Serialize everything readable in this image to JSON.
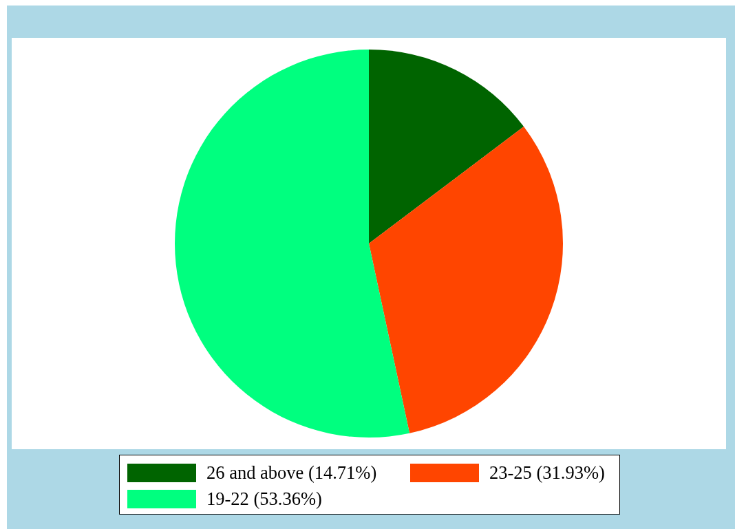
{
  "chart_data": {
    "type": "pie",
    "categories": [
      "26 and above (14.71%)",
      "23-25 (31.93%)",
      "19-22 (53.36%)"
    ],
    "values": [
      14.71,
      31.93,
      53.36
    ],
    "colors": [
      "#006400",
      "#ff4500",
      "#00ff7f"
    ],
    "legend": "bottom"
  }
}
